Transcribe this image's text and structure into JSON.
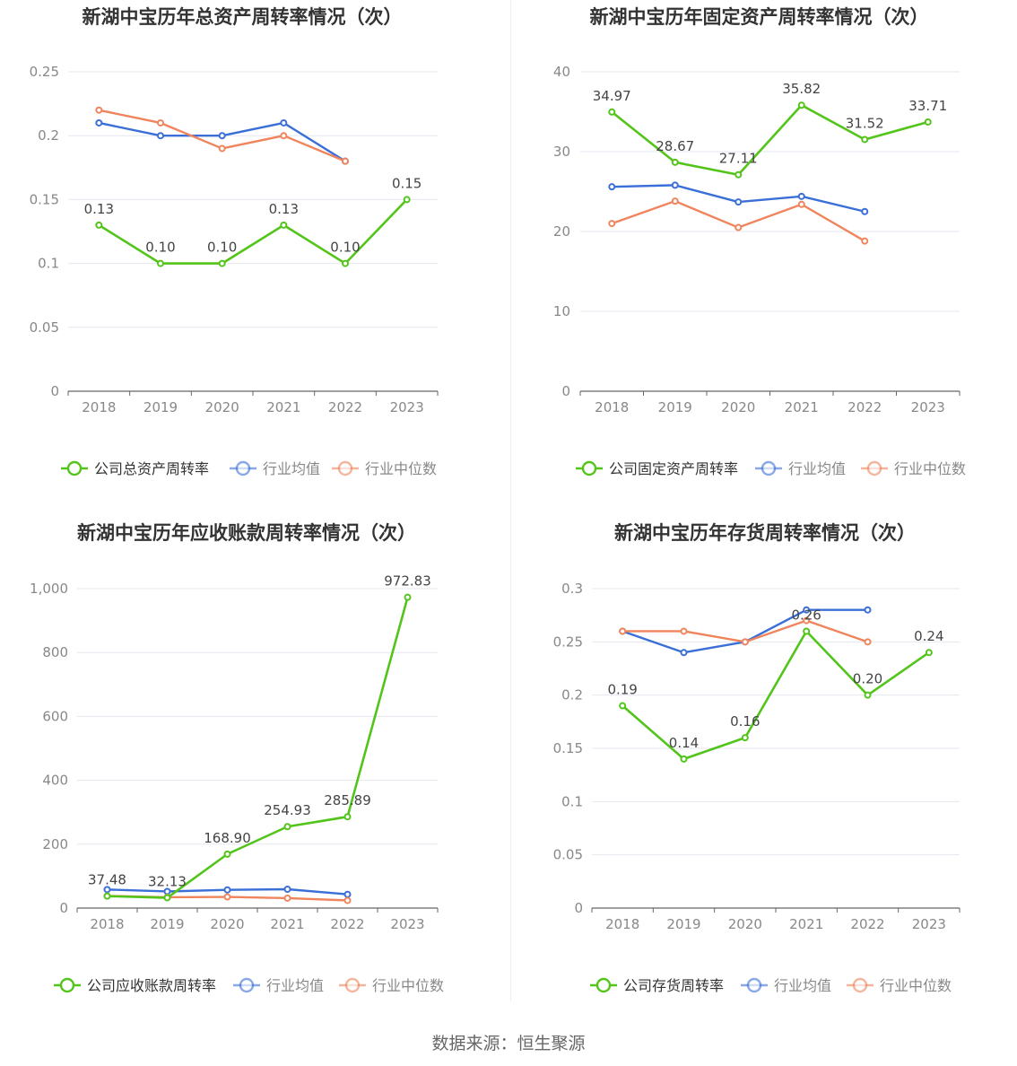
{
  "colors": {
    "company": "#52c41a",
    "avg": "#3a6fd8",
    "median": "#f0845c"
  },
  "footer": {
    "source": "数据来源：恒生聚源"
  },
  "chart_data": [
    {
      "type": "line",
      "title": "新湖中宝历年总资产周转率情况（次）",
      "categories": [
        "2018",
        "2019",
        "2020",
        "2021",
        "2022",
        "2023"
      ],
      "ylim": [
        0,
        0.25
      ],
      "yticks": [
        "0",
        "0.05",
        "0.1",
        "0.15",
        "0.2",
        "0.25"
      ],
      "legend": "bottom",
      "series": [
        {
          "name": "公司总资产周转率",
          "role": "company",
          "values": [
            0.13,
            0.1,
            0.1,
            0.13,
            0.1,
            0.15
          ],
          "labels": [
            "0.13",
            "0.10",
            "0.10",
            "0.13",
            "0.10",
            "0.15"
          ]
        },
        {
          "name": "行业均值",
          "role": "avg",
          "values": [
            0.21,
            0.2,
            0.2,
            0.21,
            0.18,
            null
          ]
        },
        {
          "name": "行业中位数",
          "role": "median",
          "values": [
            0.22,
            0.21,
            0.19,
            0.2,
            0.18,
            null
          ]
        }
      ]
    },
    {
      "type": "line",
      "title": "新湖中宝历年固定资产周转率情况（次）",
      "categories": [
        "2018",
        "2019",
        "2020",
        "2021",
        "2022",
        "2023"
      ],
      "ylim": [
        0,
        40
      ],
      "yticks": [
        "0",
        "10",
        "20",
        "30",
        "40"
      ],
      "legend": "bottom",
      "series": [
        {
          "name": "公司固定资产周转率",
          "role": "company",
          "values": [
            34.97,
            28.67,
            27.11,
            35.82,
            31.52,
            33.71
          ],
          "labels": [
            "34.97",
            "28.67",
            "27.11",
            "35.82",
            "31.52",
            "33.71"
          ]
        },
        {
          "name": "行业均值",
          "role": "avg",
          "values": [
            25.6,
            25.8,
            23.7,
            24.4,
            22.5,
            null
          ]
        },
        {
          "name": "行业中位数",
          "role": "median",
          "values": [
            21.0,
            23.8,
            20.5,
            23.4,
            18.8,
            null
          ]
        }
      ]
    },
    {
      "type": "line",
      "title": "新湖中宝历年应收账款周转率情况（次）",
      "categories": [
        "2018",
        "2019",
        "2020",
        "2021",
        "2022",
        "2023"
      ],
      "ylim": [
        0,
        1000
      ],
      "yticks": [
        "0",
        "200",
        "400",
        "600",
        "800",
        "1,000"
      ],
      "legend": "bottom",
      "series": [
        {
          "name": "公司应收账款周转率",
          "role": "company",
          "values": [
            37.48,
            32.13,
            168.9,
            254.93,
            285.89,
            972.83
          ],
          "labels": [
            "37.48",
            "32.13",
            "168.90",
            "254.93",
            "285.89",
            "972.83"
          ]
        },
        {
          "name": "行业均值",
          "role": "avg",
          "values": [
            58,
            52,
            57,
            59,
            43,
            null
          ]
        },
        {
          "name": "行业中位数",
          "role": "median",
          "values": [
            38,
            34,
            35,
            31,
            24,
            null
          ]
        }
      ]
    },
    {
      "type": "line",
      "title": "新湖中宝历年存货周转率情况（次）",
      "categories": [
        "2018",
        "2019",
        "2020",
        "2021",
        "2022",
        "2023"
      ],
      "ylim": [
        0,
        0.3
      ],
      "yticks": [
        "0",
        "0.05",
        "0.1",
        "0.15",
        "0.2",
        "0.25",
        "0.3"
      ],
      "legend": "bottom",
      "series": [
        {
          "name": "公司存货周转率",
          "role": "company",
          "values": [
            0.19,
            0.14,
            0.16,
            0.26,
            0.2,
            0.24
          ],
          "labels": [
            "0.19",
            "0.14",
            "0.16",
            "0.26",
            "0.20",
            "0.24"
          ]
        },
        {
          "name": "行业均值",
          "role": "avg",
          "values": [
            0.26,
            0.24,
            0.25,
            0.28,
            0.28,
            null
          ]
        },
        {
          "name": "行业中位数",
          "role": "median",
          "values": [
            0.26,
            0.26,
            0.25,
            0.27,
            0.25,
            null
          ]
        }
      ]
    }
  ]
}
